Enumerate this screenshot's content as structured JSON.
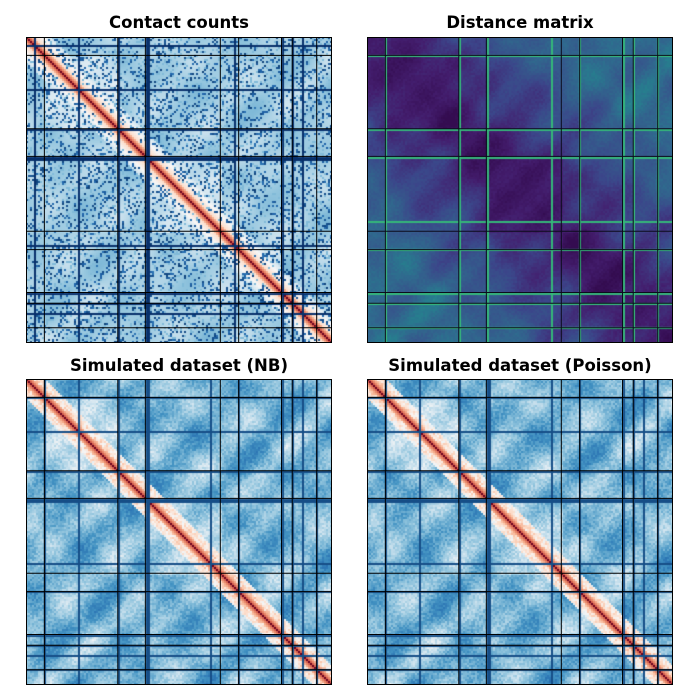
{
  "figure": {
    "panel_count": 4,
    "layout": "2x2 grid"
  },
  "chart_data": [
    {
      "type": "heatmap",
      "title": "Contact counts",
      "matrix": "symmetric Hi-C contact matrix",
      "colormap": "RdBu_r",
      "colors": {
        "low": "#08306b",
        "mid": "#f7f7f7",
        "high": "#67000d"
      },
      "diagonal_intensity": "high",
      "sparse_low_count_spots": true,
      "tad_boundaries": [
        0.06,
        0.3,
        0.39,
        0.635,
        0.695,
        0.835,
        0.87,
        0.95
      ],
      "masked_lines": [
        0.025,
        0.17,
        0.3,
        0.39,
        0.4,
        0.68,
        0.835,
        0.87,
        0.9
      ]
    },
    {
      "type": "heatmap",
      "title": "Distance matrix",
      "matrix": "symmetric pairwise distance matrix",
      "colormap": "viridis",
      "colors": {
        "low": "#2b0a4a",
        "mid": "#3b4a8a",
        "high": "#35b779"
      },
      "diagonal_intensity": "low",
      "tad_boundaries": [
        0.06,
        0.3,
        0.39,
        0.635,
        0.695,
        0.835,
        0.87,
        0.95
      ],
      "masked_lines": [
        0.06,
        0.3,
        0.39,
        0.6,
        0.695,
        0.835,
        0.87,
        0.95
      ]
    },
    {
      "type": "heatmap",
      "title": "Simulated dataset (NB)",
      "matrix": "symmetric simulated contact matrix",
      "colormap": "RdBu_r",
      "colors": {
        "low": "#2166ac",
        "mid": "#f7f7f7",
        "high": "#67000d"
      },
      "diagonal_intensity": "high",
      "tad_boundaries": [
        0.06,
        0.3,
        0.39,
        0.635,
        0.695,
        0.835,
        0.87,
        0.95
      ],
      "masked_lines": [
        0.06,
        0.17,
        0.3,
        0.39,
        0.4,
        0.6,
        0.695,
        0.835,
        0.87,
        0.9,
        0.95
      ]
    },
    {
      "type": "heatmap",
      "title": "Simulated dataset (Poisson)",
      "matrix": "symmetric simulated contact matrix",
      "colormap": "RdBu_r",
      "colors": {
        "low": "#2166ac",
        "mid": "#f7f7f7",
        "high": "#67000d"
      },
      "diagonal_intensity": "high",
      "tad_boundaries": [
        0.06,
        0.3,
        0.39,
        0.635,
        0.695,
        0.835,
        0.87,
        0.95
      ],
      "masked_lines": [
        0.06,
        0.17,
        0.3,
        0.39,
        0.4,
        0.6,
        0.695,
        0.835,
        0.87,
        0.9,
        0.95
      ]
    }
  ]
}
